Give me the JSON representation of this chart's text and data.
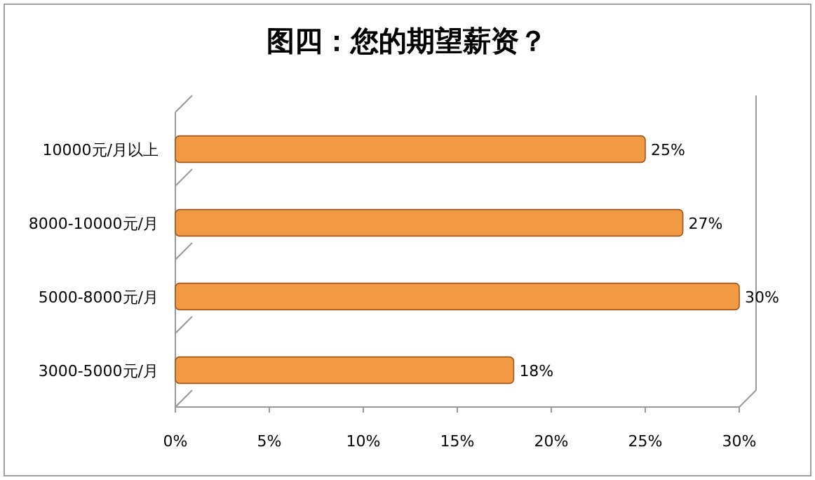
{
  "chart_data": {
    "type": "bar",
    "orientation": "horizontal",
    "title": "图四：您的期望薪资？",
    "categories": [
      "10000元/月以上",
      "8000-10000元/月",
      "5000-8000元/月",
      "3000-5000元/月"
    ],
    "values": [
      25,
      27,
      30,
      18
    ],
    "value_labels": [
      "25%",
      "27%",
      "30%",
      "18%"
    ],
    "color": "#f39a45",
    "xlim": [
      0,
      30
    ],
    "xticks": [
      {
        "value": 0,
        "label": "0%"
      },
      {
        "value": 5,
        "label": "5%"
      },
      {
        "value": 10,
        "label": "10%"
      },
      {
        "value": 15,
        "label": "15%"
      },
      {
        "value": 20,
        "label": "20%"
      },
      {
        "value": 25,
        "label": "25%"
      },
      {
        "value": 30,
        "label": "30%"
      }
    ]
  }
}
